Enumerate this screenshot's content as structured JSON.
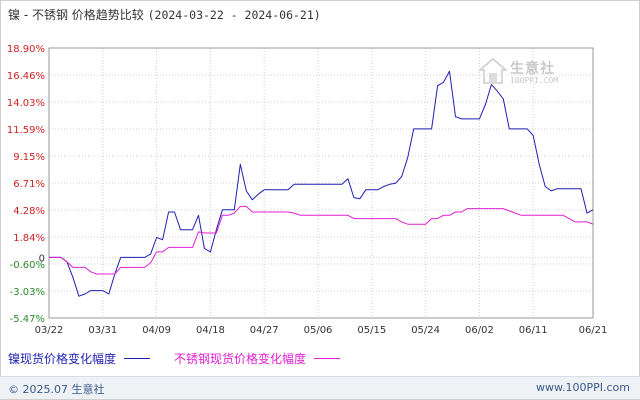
{
  "header": {
    "title": "镍 - 不锈钢 价格趋势比较",
    "range": "(2024-03-22 - 2024-06-21)"
  },
  "watermark": {
    "text": "生意社",
    "url": "100PPI.COM"
  },
  "footer": {
    "copyright": "© 2025.07 生意社",
    "site": "www.100PPI.com"
  },
  "colors": {
    "nickel": "#1f1fb4",
    "stainless": "#e020d0",
    "axis": "#333333",
    "grid": "#d0d0d0",
    "positive_tick": "#cc2222",
    "negative_tick": "#2a8a2a"
  },
  "chart_data": {
    "type": "line",
    "title": "镍 - 不锈钢 价格趋势比较",
    "x_ticks": [
      "03/22",
      "03/31",
      "04/09",
      "04/18",
      "04/27",
      "05/06",
      "05/15",
      "05/24",
      "06/02",
      "06/11",
      "06/21"
    ],
    "y_ticks": [
      "18.90%",
      "16.46%",
      "14.03%",
      "11.59%",
      "9.15%",
      "6.71%",
      "4.28%",
      "1.84%",
      "0",
      "-0.60%",
      "-3.03%",
      "-5.47%"
    ],
    "y_tick_values": [
      18.9,
      16.46,
      14.03,
      11.59,
      9.15,
      6.71,
      4.28,
      1.84,
      0,
      -0.6,
      -3.03,
      -5.47
    ],
    "ylim": [
      -5.47,
      18.9
    ],
    "x_range_days": [
      0,
      91
    ],
    "grid": true,
    "legend_position": "bottom-left",
    "series": [
      {
        "name": "镍现货价格变化幅度",
        "color": "#1f1fb4",
        "points": [
          [
            0,
            0
          ],
          [
            2,
            0
          ],
          [
            3,
            -0.4
          ],
          [
            4,
            -1.8
          ],
          [
            5,
            -3.5
          ],
          [
            6,
            -3.3
          ],
          [
            7,
            -3.0
          ],
          [
            8,
            -3.0
          ],
          [
            9,
            -3.0
          ],
          [
            10,
            -3.3
          ],
          [
            11,
            -1.5
          ],
          [
            12,
            0
          ],
          [
            13,
            0
          ],
          [
            14,
            0
          ],
          [
            15,
            0
          ],
          [
            16,
            0
          ],
          [
            17,
            0.3
          ],
          [
            18,
            1.8
          ],
          [
            19,
            1.6
          ],
          [
            20,
            4.1
          ],
          [
            21,
            4.1
          ],
          [
            22,
            2.5
          ],
          [
            23,
            2.5
          ],
          [
            24,
            2.5
          ],
          [
            25,
            3.8
          ],
          [
            26,
            0.8
          ],
          [
            27,
            0.5
          ],
          [
            28,
            2.5
          ],
          [
            29,
            4.3
          ],
          [
            30,
            4.3
          ],
          [
            31,
            4.3
          ],
          [
            32,
            8.4
          ],
          [
            33,
            6.0
          ],
          [
            34,
            5.2
          ],
          [
            35,
            5.7
          ],
          [
            36,
            6.1
          ],
          [
            37,
            6.1
          ],
          [
            38,
            6.1
          ],
          [
            39,
            6.1
          ],
          [
            40,
            6.1
          ],
          [
            41,
            6.6
          ],
          [
            42,
            6.6
          ],
          [
            43,
            6.6
          ],
          [
            44,
            6.6
          ],
          [
            45,
            6.6
          ],
          [
            46,
            6.6
          ],
          [
            47,
            6.6
          ],
          [
            48,
            6.6
          ],
          [
            49,
            6.6
          ],
          [
            50,
            7.1
          ],
          [
            51,
            5.4
          ],
          [
            52,
            5.3
          ],
          [
            53,
            6.1
          ],
          [
            54,
            6.1
          ],
          [
            55,
            6.1
          ],
          [
            56,
            6.4
          ],
          [
            57,
            6.6
          ],
          [
            58,
            6.7
          ],
          [
            59,
            7.3
          ],
          [
            60,
            9.0
          ],
          [
            61,
            11.6
          ],
          [
            62,
            11.6
          ],
          [
            63,
            11.6
          ],
          [
            64,
            11.6
          ],
          [
            65,
            15.5
          ],
          [
            66,
            15.8
          ],
          [
            67,
            16.8
          ],
          [
            68,
            12.7
          ],
          [
            69,
            12.5
          ],
          [
            70,
            12.5
          ],
          [
            71,
            12.5
          ],
          [
            72,
            12.5
          ],
          [
            73,
            13.8
          ],
          [
            74,
            15.6
          ],
          [
            75,
            15.0
          ],
          [
            76,
            14.3
          ],
          [
            77,
            11.6
          ],
          [
            78,
            11.6
          ],
          [
            79,
            11.6
          ],
          [
            80,
            11.6
          ],
          [
            81,
            11.0
          ],
          [
            82,
            8.4
          ],
          [
            83,
            6.4
          ],
          [
            84,
            6.0
          ],
          [
            85,
            6.2
          ],
          [
            86,
            6.2
          ],
          [
            87,
            6.2
          ],
          [
            88,
            6.2
          ],
          [
            89,
            6.2
          ],
          [
            90,
            4.0
          ],
          [
            91,
            4.3
          ]
        ]
      },
      {
        "name": "不锈钢现货价格变化幅度",
        "color": "#e020d0",
        "points": [
          [
            0,
            0
          ],
          [
            2,
            0
          ],
          [
            3,
            -0.4
          ],
          [
            4,
            -0.9
          ],
          [
            5,
            -0.9
          ],
          [
            6,
            -0.9
          ],
          [
            7,
            -1.3
          ],
          [
            8,
            -1.5
          ],
          [
            9,
            -1.5
          ],
          [
            10,
            -1.5
          ],
          [
            11,
            -1.5
          ],
          [
            12,
            -0.9
          ],
          [
            13,
            -0.9
          ],
          [
            14,
            -0.9
          ],
          [
            15,
            -0.9
          ],
          [
            16,
            -0.9
          ],
          [
            17,
            -0.5
          ],
          [
            18,
            0.5
          ],
          [
            19,
            0.5
          ],
          [
            20,
            0.9
          ],
          [
            21,
            0.9
          ],
          [
            22,
            0.9
          ],
          [
            23,
            0.9
          ],
          [
            24,
            0.9
          ],
          [
            25,
            2.3
          ],
          [
            26,
            2.2
          ],
          [
            27,
            2.2
          ],
          [
            28,
            2.2
          ],
          [
            29,
            3.8
          ],
          [
            30,
            3.8
          ],
          [
            31,
            4.0
          ],
          [
            32,
            4.6
          ],
          [
            33,
            4.6
          ],
          [
            34,
            4.1
          ],
          [
            35,
            4.1
          ],
          [
            36,
            4.1
          ],
          [
            37,
            4.1
          ],
          [
            38,
            4.1
          ],
          [
            39,
            4.1
          ],
          [
            40,
            4.1
          ],
          [
            41,
            4.0
          ],
          [
            42,
            3.8
          ],
          [
            43,
            3.8
          ],
          [
            44,
            3.8
          ],
          [
            45,
            3.8
          ],
          [
            46,
            3.8
          ],
          [
            47,
            3.8
          ],
          [
            48,
            3.8
          ],
          [
            49,
            3.8
          ],
          [
            50,
            3.8
          ],
          [
            51,
            3.5
          ],
          [
            52,
            3.5
          ],
          [
            53,
            3.5
          ],
          [
            54,
            3.5
          ],
          [
            55,
            3.5
          ],
          [
            56,
            3.5
          ],
          [
            57,
            3.5
          ],
          [
            58,
            3.5
          ],
          [
            59,
            3.2
          ],
          [
            60,
            3.0
          ],
          [
            61,
            3.0
          ],
          [
            62,
            3.0
          ],
          [
            63,
            3.0
          ],
          [
            64,
            3.5
          ],
          [
            65,
            3.5
          ],
          [
            66,
            3.8
          ],
          [
            67,
            3.8
          ],
          [
            68,
            4.1
          ],
          [
            69,
            4.1
          ],
          [
            70,
            4.4
          ],
          [
            71,
            4.4
          ],
          [
            72,
            4.4
          ],
          [
            73,
            4.4
          ],
          [
            74,
            4.4
          ],
          [
            75,
            4.4
          ],
          [
            76,
            4.4
          ],
          [
            77,
            4.2
          ],
          [
            78,
            4.0
          ],
          [
            79,
            3.8
          ],
          [
            80,
            3.8
          ],
          [
            81,
            3.8
          ],
          [
            82,
            3.8
          ],
          [
            83,
            3.8
          ],
          [
            84,
            3.8
          ],
          [
            85,
            3.8
          ],
          [
            86,
            3.8
          ],
          [
            87,
            3.5
          ],
          [
            88,
            3.2
          ],
          [
            89,
            3.2
          ],
          [
            90,
            3.2
          ],
          [
            91,
            3.0
          ]
        ]
      }
    ]
  }
}
